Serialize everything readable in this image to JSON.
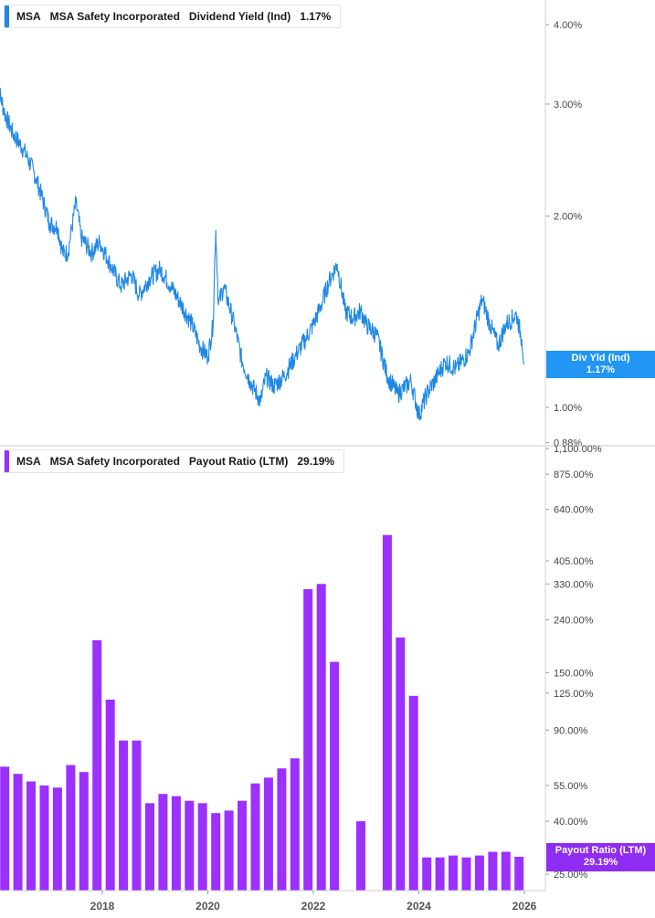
{
  "top_panel": {
    "legend": {
      "ticker": "MSA",
      "company": "MSA Safety Incorporated",
      "metric": "Dividend Yield (Ind)",
      "value": "1.17%"
    },
    "badge": {
      "label": "Div Yld (Ind)",
      "value": "1.17%"
    }
  },
  "bottom_panel": {
    "legend": {
      "ticker": "MSA",
      "company": "MSA Safety Incorporated",
      "metric": "Payout Ratio (LTM)",
      "value": "29.19%"
    },
    "badge": {
      "label": "Payout Ratio (LTM)",
      "value": "29.19%"
    }
  },
  "colors": {
    "yield_line": "#1e88e5",
    "payout_bar": "#9b30ff",
    "yield_badge": "#2196f3",
    "payout_badge": "#8f2cf2",
    "axis_text": "#444444",
    "divider": "#c8c8c8"
  },
  "chart_data": [
    {
      "type": "line",
      "title": "MSA  MSA Safety Incorporated  Dividend Yield (Ind)  1.17%",
      "xlabel": "",
      "ylabel": "",
      "y_scale": "log",
      "ylim": [
        0.88,
        4.4
      ],
      "y_ticks": [
        {
          "value": 4.0,
          "label": "4.00%"
        },
        {
          "value": 3.0,
          "label": "3.00%"
        },
        {
          "value": 2.0,
          "label": "2.00%"
        },
        {
          "value": 1.0,
          "label": "1.00%"
        },
        {
          "value": 0.88,
          "label": "0.88%"
        }
      ],
      "grid": false,
      "series": [
        {
          "name": "Dividend Yield (Ind)",
          "x": [
            2016.0,
            2016.15,
            2016.3,
            2016.5,
            2016.7,
            2016.85,
            2017.0,
            2017.15,
            2017.25,
            2017.35,
            2017.5,
            2017.6,
            2017.8,
            2017.95,
            2018.15,
            2018.35,
            2018.55,
            2018.7,
            2018.9,
            2019.1,
            2019.3,
            2019.5,
            2019.7,
            2019.85,
            2020.0,
            2020.1,
            2020.15,
            2020.2,
            2020.3,
            2020.5,
            2020.65,
            2020.8,
            2021.0,
            2021.1,
            2021.25,
            2021.45,
            2021.65,
            2021.85,
            2022.0,
            2022.15,
            2022.3,
            2022.45,
            2022.6,
            2022.75,
            2022.9,
            2023.0,
            2023.2,
            2023.4,
            2023.6,
            2023.85,
            2024.0,
            2024.15,
            2024.35,
            2024.5,
            2024.7,
            2024.95,
            2025.2,
            2025.35,
            2025.5,
            2025.65,
            2025.85,
            2025.95,
            2026.0
          ],
          "values": [
            3.25,
            2.9,
            2.7,
            2.55,
            2.35,
            2.15,
            1.95,
            1.92,
            1.75,
            1.75,
            2.1,
            1.85,
            1.75,
            1.82,
            1.68,
            1.55,
            1.62,
            1.5,
            1.6,
            1.65,
            1.55,
            1.45,
            1.35,
            1.25,
            1.2,
            1.35,
            1.9,
            1.45,
            1.55,
            1.35,
            1.18,
            1.1,
            1.02,
            1.12,
            1.08,
            1.12,
            1.2,
            1.28,
            1.35,
            1.45,
            1.58,
            1.68,
            1.42,
            1.38,
            1.42,
            1.35,
            1.3,
            1.12,
            1.05,
            1.1,
            0.97,
            1.05,
            1.12,
            1.18,
            1.15,
            1.22,
            1.48,
            1.35,
            1.25,
            1.35,
            1.4,
            1.28,
            1.17
          ]
        }
      ]
    },
    {
      "type": "bar",
      "title": "MSA  MSA Safety Incorporated  Payout Ratio (LTM)  29.19%",
      "xlabel": "",
      "ylabel": "",
      "y_scale": "log",
      "ylim": [
        22,
        1100
      ],
      "y_ticks": [
        {
          "value": 1100,
          "label": "1,100.00%"
        },
        {
          "value": 875,
          "label": "875.00%"
        },
        {
          "value": 640,
          "label": "640.00%"
        },
        {
          "value": 405,
          "label": "405.00%"
        },
        {
          "value": 330,
          "label": "330.00%"
        },
        {
          "value": 240,
          "label": "240.00%"
        },
        {
          "value": 150,
          "label": "150.00%"
        },
        {
          "value": 125,
          "label": "125.00%"
        },
        {
          "value": 90,
          "label": "90.00%"
        },
        {
          "value": 55,
          "label": "55.00%"
        },
        {
          "value": 40,
          "label": "40.00%"
        },
        {
          "value": 25,
          "label": "25.00%"
        }
      ],
      "x_ticks": [
        "2018",
        "2020",
        "2022",
        "2024",
        "2026"
      ],
      "grid": false,
      "series": [
        {
          "name": "Payout Ratio (LTM)",
          "x": [
            2016.15,
            2016.4,
            2016.65,
            2016.9,
            2017.15,
            2017.4,
            2017.65,
            2017.9,
            2018.15,
            2018.4,
            2018.65,
            2018.9,
            2019.15,
            2019.4,
            2019.65,
            2019.9,
            2020.15,
            2020.4,
            2020.65,
            2020.9,
            2021.15,
            2021.4,
            2021.65,
            2021.9,
            2022.15,
            2022.4,
            2022.65,
            2022.9,
            2023.15,
            2023.4,
            2023.65,
            2023.9,
            2024.15,
            2024.4,
            2024.65,
            2024.9,
            2025.15,
            2025.4,
            2025.65,
            2025.9
          ],
          "values": [
            65,
            61,
            57,
            55,
            54,
            66,
            62,
            200,
            118,
            82,
            82,
            47,
            51,
            50,
            48,
            47,
            43,
            44,
            48,
            56,
            59,
            64,
            70,
            315,
            330,
            165,
            null,
            40,
            null,
            510,
            205,
            122,
            29,
            29,
            29.5,
            29,
            29.5,
            30.5,
            30.5,
            29.19
          ]
        }
      ]
    }
  ]
}
